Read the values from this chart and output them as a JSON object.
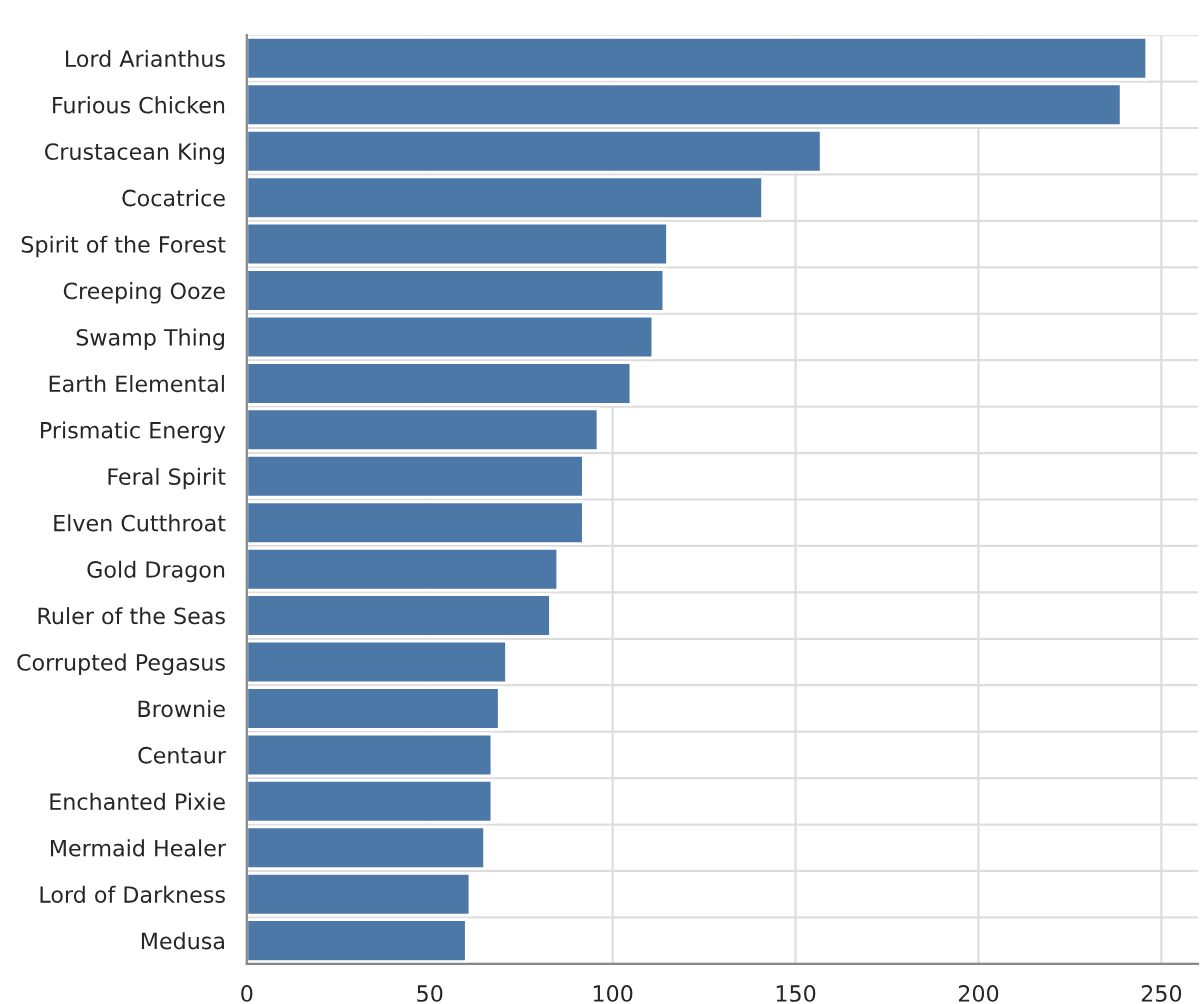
{
  "chart_data": {
    "type": "bar",
    "orientation": "horizontal",
    "categories": [
      "Lord Arianthus",
      "Furious Chicken",
      "Crustacean King",
      "Cocatrice",
      "Spirit of the Forest",
      "Creeping Ooze",
      "Swamp Thing",
      "Earth Elemental",
      "Prismatic Energy",
      "Feral Spirit",
      "Elven Cutthroat",
      "Gold Dragon",
      "Ruler of the Seas",
      "Corrupted Pegasus",
      "Brownie",
      "Centaur",
      "Enchanted Pixie",
      "Mermaid Healer",
      "Lord of Darkness",
      "Medusa"
    ],
    "values": [
      246,
      239,
      157,
      141,
      115,
      114,
      111,
      105,
      96,
      92,
      92,
      85,
      83,
      71,
      69,
      67,
      67,
      65,
      61,
      60
    ],
    "color": "#4c78a8",
    "xlim": [
      0,
      260
    ],
    "xticks": [
      0,
      50,
      100,
      150,
      200,
      250
    ],
    "grid": true
  }
}
